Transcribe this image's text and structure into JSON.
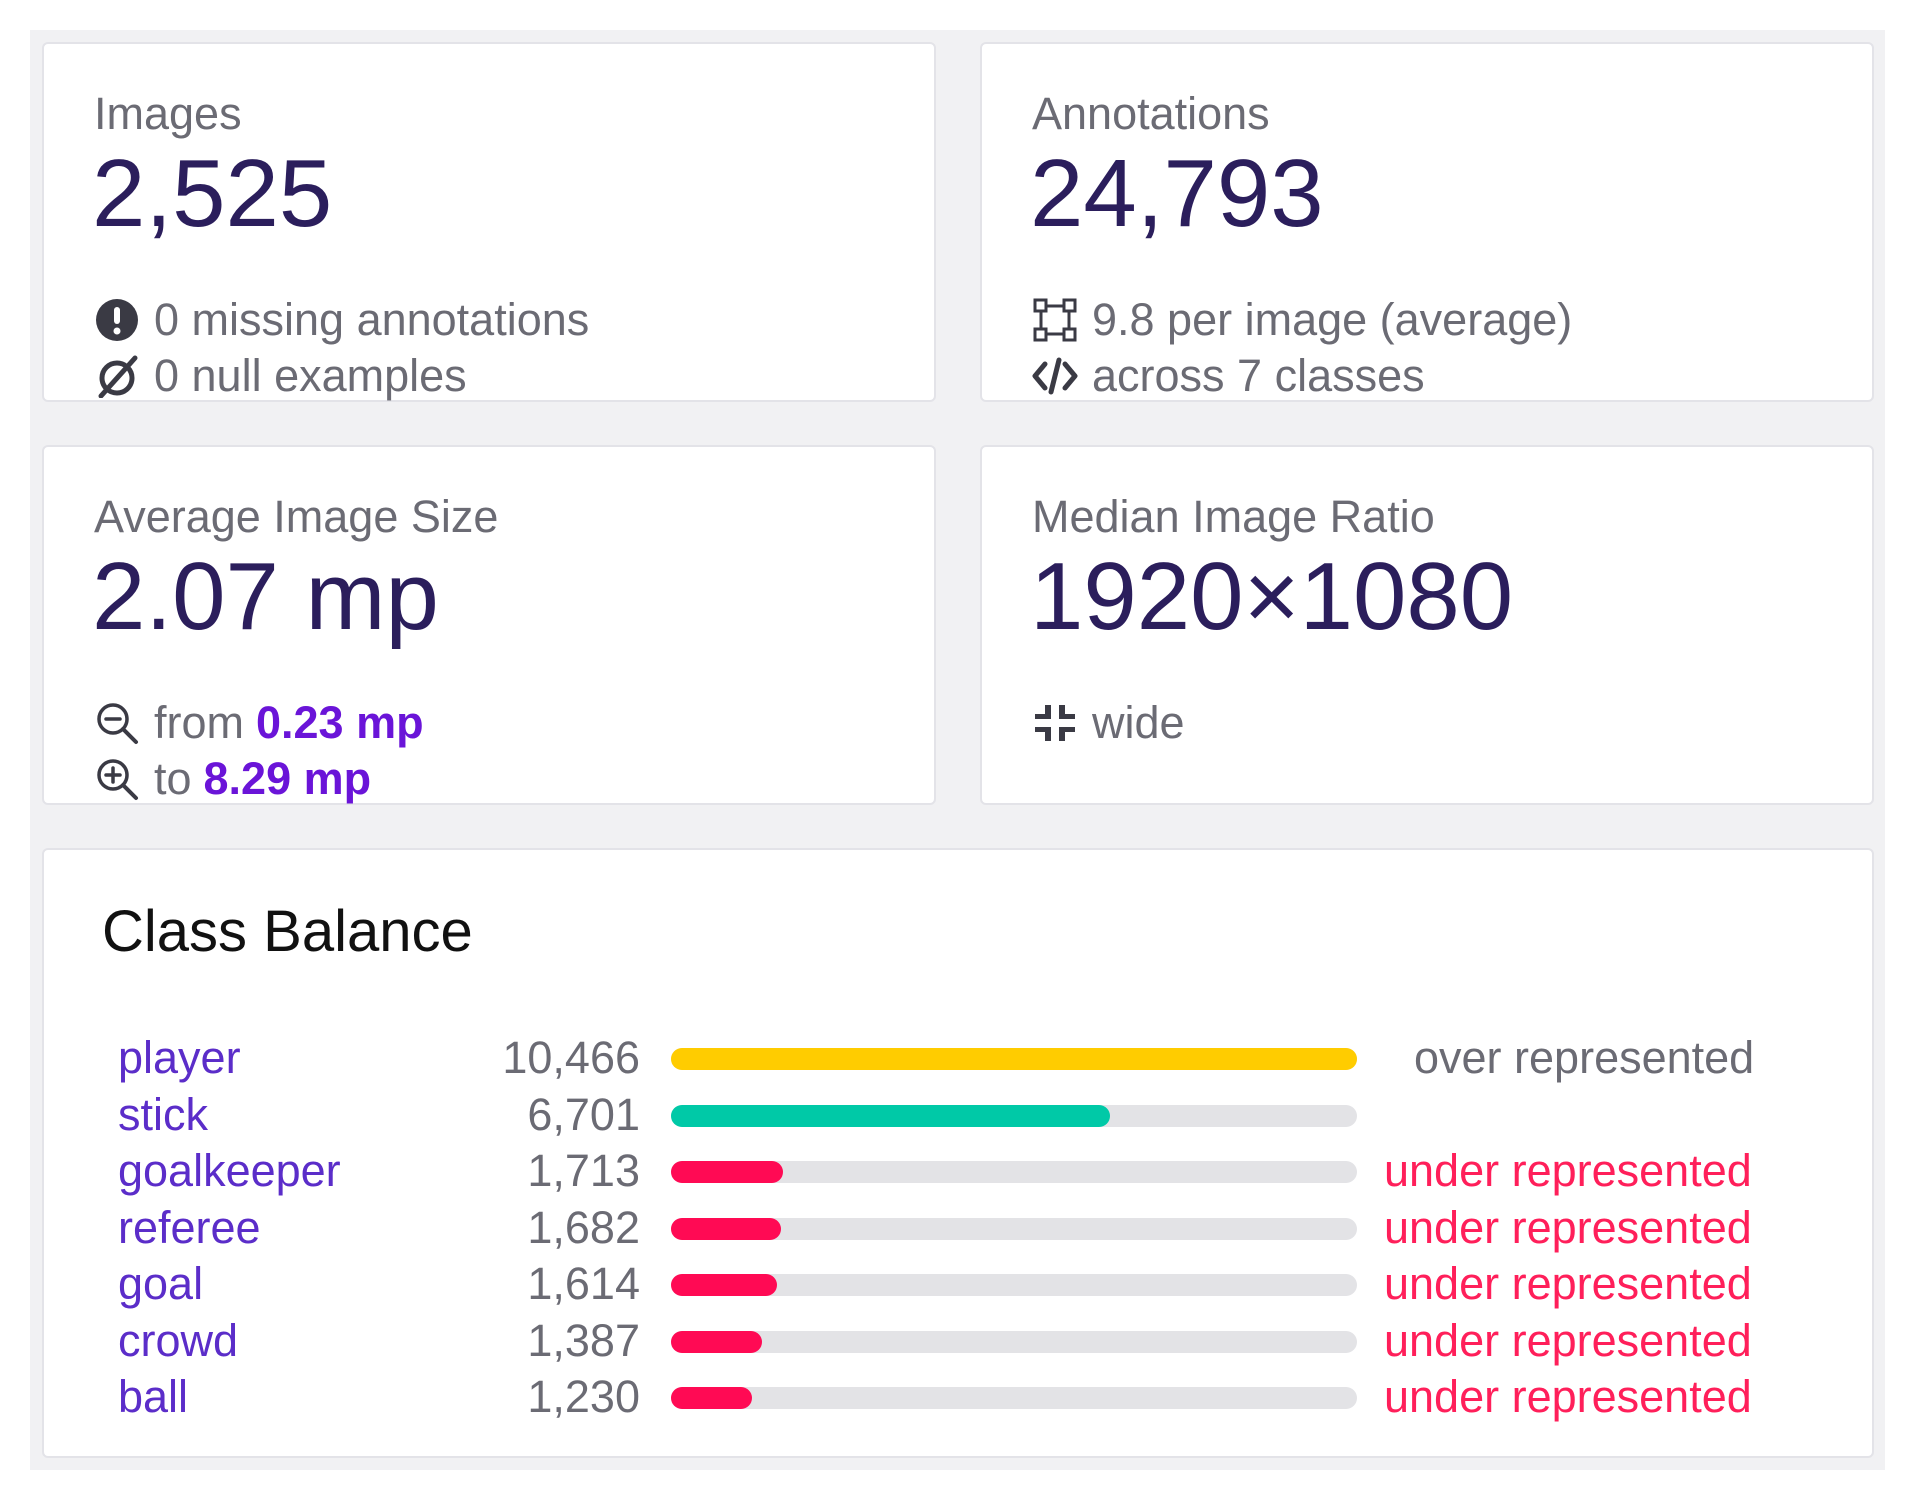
{
  "images": {
    "label": "Images",
    "value": "2,525",
    "missing": "0 missing annotations",
    "null_examples": "0 null examples"
  },
  "annotations": {
    "label": "Annotations",
    "value": "24,793",
    "per_image": "9.8 per image (average)",
    "classes": "across 7 classes"
  },
  "image_size": {
    "label": "Average Image Size",
    "value": "2.07 mp",
    "from_label": "from",
    "from_value": "0.23 mp",
    "to_label": "to",
    "to_value": "8.29 mp"
  },
  "image_ratio": {
    "label": "Median Image Ratio",
    "value": "1920×1080",
    "shape": "wide"
  },
  "class_balance": {
    "title": "Class Balance",
    "max": 10466,
    "rows": [
      {
        "name": "player",
        "count": "10,466",
        "value": 10466,
        "status": "over represented",
        "status_type": "over",
        "color": "#ffcc00"
      },
      {
        "name": "stick",
        "count": "6,701",
        "value": 6701,
        "status": "",
        "status_type": "normal",
        "color": "#00c9a7"
      },
      {
        "name": "goalkeeper",
        "count": "1,713",
        "value": 1713,
        "status": "under represented",
        "status_type": "under",
        "color": "#ff0a54"
      },
      {
        "name": "referee",
        "count": "1,682",
        "value": 1682,
        "status": "under represented",
        "status_type": "under",
        "color": "#ff0a54"
      },
      {
        "name": "goal",
        "count": "1,614",
        "value": 1614,
        "status": "under represented",
        "status_type": "under",
        "color": "#ff0a54"
      },
      {
        "name": "crowd",
        "count": "1,387",
        "value": 1387,
        "status": "under represented",
        "status_type": "under",
        "color": "#ff0a54"
      },
      {
        "name": "ball",
        "count": "1,230",
        "value": 1230,
        "status": "under represented",
        "status_type": "under",
        "color": "#ff0a54"
      }
    ],
    "status_colors": {
      "over": "#6b6b74",
      "under": "#ff1f5a",
      "normal": "#6b6b74"
    }
  }
}
